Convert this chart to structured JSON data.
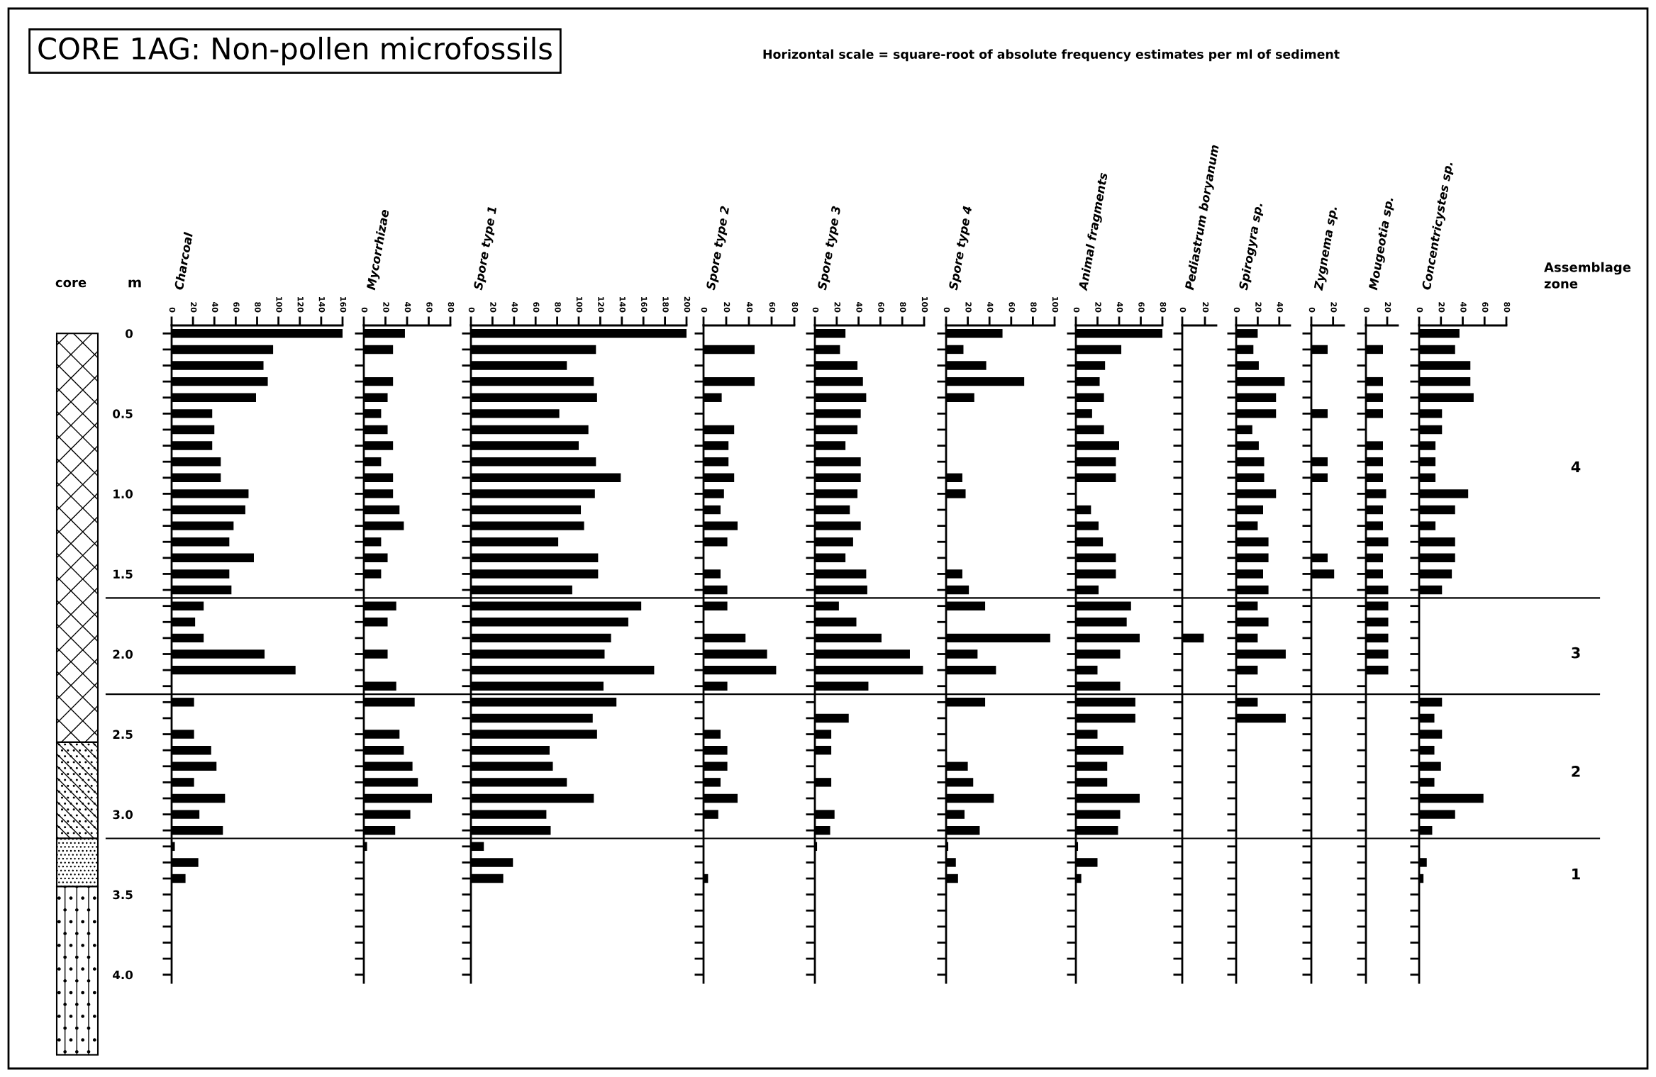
{
  "chart_data": [
    {
      "type": "bar",
      "orientation": "horizontal",
      "title": "Charcoal",
      "ylabel": "m",
      "color": "#000000",
      "annotations": [
        "CORE 1AG: Non-pollen microfossils",
        "Horizontal scale = square-root of absolute frequency estimates per ml of sediment",
        "core",
        "Assemblage zone",
        "4",
        "3",
        "2",
        "1"
      ],
      "ref_lines": [
        {
          "axis": "y",
          "value": 1.65
        },
        {
          "axis": "y",
          "value": 2.25
        },
        {
          "axis": "y",
          "value": 3.15
        }
      ],
      "x": [
        0,
        0.1,
        0.2,
        0.3,
        0.4,
        0.5,
        0.6,
        0.7,
        0.8,
        0.9,
        1.0,
        1.1,
        1.2,
        1.3,
        1.4,
        1.5,
        1.6,
        1.7,
        1.8,
        1.9,
        2.0,
        2.1,
        2.2,
        2.3,
        2.4,
        2.5,
        2.6,
        2.7,
        2.8,
        2.9,
        3.0,
        3.1,
        3.2,
        3.3,
        3.4
      ],
      "values": [
        160,
        95,
        86,
        90,
        79,
        38,
        40,
        38,
        46,
        46,
        72,
        69,
        58,
        54,
        77,
        54,
        56,
        30,
        22,
        30,
        87,
        116,
        null,
        21,
        null,
        21,
        37,
        42,
        21,
        50,
        26,
        48,
        3,
        25,
        13
      ],
      "xlim": [
        0,
        160
      ],
      "xticks": [
        0,
        20,
        40,
        60,
        80,
        100,
        120,
        140,
        160
      ],
      "ylim": [
        4.05,
        -0.05
      ],
      "yticks": [
        0,
        {
          "value": 0.1,
          "label": null
        },
        {
          "value": 0.2,
          "label": null
        },
        {
          "value": 0.3,
          "label": null
        },
        {
          "value": 0.4,
          "label": null
        },
        0.5,
        {
          "value": 0.6,
          "label": null
        },
        {
          "value": 0.7,
          "label": null
        },
        {
          "value": 0.8,
          "label": null
        },
        {
          "value": 0.9,
          "label": null
        },
        {
          "value": 1,
          "label": "1.0"
        },
        {
          "value": 1.1,
          "label": null
        },
        {
          "value": 1.2,
          "label": null
        },
        {
          "value": 1.3,
          "label": null
        },
        {
          "value": 1.4,
          "label": null
        },
        1.5,
        {
          "value": 1.6,
          "label": null
        },
        {
          "value": 1.7,
          "label": null
        },
        {
          "value": 1.8,
          "label": null
        },
        {
          "value": 1.9,
          "label": null
        },
        {
          "value": 2,
          "label": "2.0"
        },
        {
          "value": 2.1,
          "label": null
        },
        {
          "value": 2.2,
          "label": null
        },
        {
          "value": 2.3,
          "label": null
        },
        {
          "value": 2.4,
          "label": null
        },
        2.5,
        {
          "value": 2.6,
          "label": null
        },
        {
          "value": 2.7,
          "label": null
        },
        {
          "value": 2.8,
          "label": null
        },
        {
          "value": 2.9,
          "label": null
        },
        {
          "value": 3,
          "label": "3.0"
        },
        {
          "value": 3.1,
          "label": null
        },
        {
          "value": 3.2,
          "label": null
        },
        {
          "value": 3.3,
          "label": null
        },
        {
          "value": 3.4,
          "label": null
        },
        3.5,
        {
          "value": 3.6,
          "label": null
        },
        {
          "value": 3.7,
          "label": null
        },
        {
          "value": 3.8,
          "label": null
        },
        {
          "value": 3.9,
          "label": null
        },
        {
          "value": 4,
          "label": "4.0"
        }
      ]
    },
    {
      "type": "bar",
      "orientation": "horizontal",
      "title": "Mycorrhizae",
      "color": "#000000",
      "tick_labels": "x",
      "x": [
        0,
        0.1,
        0.2,
        0.3,
        0.4,
        0.5,
        0.6,
        0.7,
        0.8,
        0.9,
        1.0,
        1.1,
        1.2,
        1.3,
        1.4,
        1.5,
        1.6,
        1.7,
        1.8,
        1.9,
        2.0,
        2.1,
        2.2,
        2.3,
        2.4,
        2.5,
        2.6,
        2.7,
        2.8,
        2.9,
        3.0,
        3.1,
        3.2
      ],
      "values": [
        38,
        27,
        null,
        27,
        22,
        16,
        22,
        27,
        16,
        27,
        27,
        33,
        37,
        16,
        22,
        16,
        null,
        30,
        22,
        null,
        22,
        null,
        30,
        47,
        null,
        33,
        37,
        45,
        50,
        63,
        43,
        29,
        3
      ],
      "xlim": [
        0,
        80
      ],
      "xticks": [
        0,
        20,
        40,
        60,
        80
      ],
      "ylim": [
        4.05,
        -0.05
      ]
    },
    {
      "type": "bar",
      "orientation": "horizontal",
      "title": "Spore type 1",
      "color": "#000000",
      "tick_labels": "x",
      "x": [
        0,
        0.1,
        0.2,
        0.3,
        0.4,
        0.5,
        0.6,
        0.7,
        0.8,
        0.9,
        1.0,
        1.1,
        1.2,
        1.3,
        1.4,
        1.5,
        1.6,
        1.7,
        1.8,
        1.9,
        2.0,
        2.1,
        2.2,
        2.3,
        2.4,
        2.5,
        2.6,
        2.7,
        2.8,
        2.9,
        3.0,
        3.1,
        3.2,
        3.3,
        3.4
      ],
      "values": [
        200,
        116,
        89,
        114,
        117,
        82,
        109,
        100,
        116,
        139,
        115,
        102,
        105,
        81,
        118,
        118,
        94,
        158,
        146,
        130,
        124,
        170,
        123,
        135,
        113,
        117,
        73,
        76,
        89,
        114,
        70,
        74,
        12,
        39,
        30
      ],
      "xlim": [
        0,
        200
      ],
      "xticks": [
        0,
        20,
        40,
        60,
        80,
        100,
        120,
        140,
        160,
        180,
        200
      ],
      "ylim": [
        4.05,
        -0.05
      ]
    },
    {
      "type": "bar",
      "orientation": "horizontal",
      "title": "Spore type 2",
      "color": "#000000",
      "tick_labels": "x",
      "x": [
        0.1,
        0.2,
        0.3,
        0.4,
        0.5,
        0.6,
        0.7,
        0.8,
        0.9,
        1.0,
        1.1,
        1.2,
        1.3,
        1.4,
        1.5,
        1.6,
        1.7,
        1.8,
        1.9,
        2.0,
        2.1,
        2.2,
        2.3,
        2.4,
        2.5,
        2.6,
        2.7,
        2.8,
        2.9,
        3.0,
        3.1,
        3.2,
        3.3,
        3.4
      ],
      "values": [
        45,
        null,
        45,
        16,
        null,
        27,
        22,
        22,
        27,
        18,
        15,
        30,
        21,
        null,
        15,
        21,
        21,
        null,
        37,
        56,
        64,
        21,
        null,
        null,
        15,
        21,
        21,
        15,
        30,
        13,
        null,
        null,
        null,
        4
      ],
      "xlim": [
        0,
        80
      ],
      "xticks": [
        0,
        20,
        40,
        60,
        80
      ],
      "ylim": [
        4.05,
        -0.05
      ]
    },
    {
      "type": "bar",
      "orientation": "horizontal",
      "title": "Spore type 3",
      "color": "#000000",
      "tick_labels": "x",
      "x": [
        0,
        0.1,
        0.2,
        0.3,
        0.4,
        0.5,
        0.6,
        0.7,
        0.8,
        0.9,
        1.0,
        1.1,
        1.2,
        1.3,
        1.4,
        1.5,
        1.6,
        1.7,
        1.8,
        1.9,
        2.0,
        2.1,
        2.2,
        2.3,
        2.4,
        2.5,
        2.6,
        2.7,
        2.8,
        2.9,
        3.0,
        3.1,
        3.2
      ],
      "values": [
        28,
        23,
        39,
        44,
        47,
        42,
        39,
        28,
        42,
        42,
        39,
        32,
        42,
        35,
        28,
        47,
        48,
        22,
        38,
        61,
        87,
        99,
        49,
        null,
        31,
        15,
        15,
        null,
        15,
        null,
        18,
        14,
        2
      ],
      "xlim": [
        0,
        100
      ],
      "xticks": [
        0,
        20,
        40,
        60,
        80,
        100
      ],
      "ylim": [
        4.05,
        -0.05
      ]
    },
    {
      "type": "bar",
      "orientation": "horizontal",
      "title": "Spore type 4",
      "color": "#000000",
      "tick_labels": "x",
      "x": [
        0,
        0.1,
        0.2,
        0.3,
        0.4,
        0.5,
        0.6,
        0.7,
        0.8,
        0.9,
        1.0,
        1.1,
        1.2,
        1.3,
        1.4,
        1.5,
        1.6,
        1.7,
        1.8,
        1.9,
        2.0,
        2.1,
        2.2,
        2.3,
        2.4,
        2.5,
        2.6,
        2.7,
        2.8,
        2.9,
        3.0,
        3.1,
        3.2,
        3.3,
        3.4
      ],
      "values": [
        52,
        16,
        37,
        72,
        26,
        null,
        null,
        null,
        null,
        15,
        18,
        null,
        null,
        null,
        null,
        15,
        21,
        36,
        null,
        96,
        29,
        46,
        null,
        36,
        null,
        null,
        null,
        20,
        25,
        44,
        17,
        31,
        2,
        9,
        11
      ],
      "xlim": [
        0,
        100
      ],
      "xticks": [
        0,
        20,
        40,
        60,
        80,
        100
      ],
      "ylim": [
        4.05,
        -0.05
      ]
    },
    {
      "type": "bar",
      "orientation": "horizontal",
      "title": "Animal fragments",
      "color": "#000000",
      "tick_labels": "x",
      "x": [
        0,
        0.1,
        0.2,
        0.3,
        0.4,
        0.5,
        0.6,
        0.7,
        0.8,
        0.9,
        1.0,
        1.1,
        1.2,
        1.3,
        1.4,
        1.5,
        1.6,
        1.7,
        1.8,
        1.9,
        2.0,
        2.1,
        2.2,
        2.3,
        2.4,
        2.5,
        2.6,
        2.7,
        2.8,
        2.9,
        3.0,
        3.1,
        3.2,
        3.3,
        3.4
      ],
      "values": [
        80,
        42,
        27,
        22,
        26,
        15,
        26,
        40,
        37,
        37,
        null,
        14,
        21,
        25,
        37,
        37,
        21,
        51,
        47,
        59,
        41,
        20,
        41,
        55,
        55,
        20,
        44,
        29,
        29,
        59,
        41,
        39,
        2,
        20,
        5
      ],
      "xlim": [
        0,
        80
      ],
      "xticks": [
        0,
        20,
        40,
        60,
        80
      ],
      "ylim": [
        4.05,
        -0.05
      ]
    },
    {
      "type": "bar",
      "orientation": "horizontal",
      "title": "Pediastrum boryanum",
      "color": "#000000",
      "tick_labels": "x",
      "x": [
        1.9
      ],
      "values": [
        19
      ],
      "xlim": [
        0,
        30
      ],
      "xticks": [
        0,
        20
      ],
      "ylim": [
        4.05,
        -0.05
      ]
    },
    {
      "type": "bar",
      "orientation": "horizontal",
      "title": "Spirogyra sp.",
      "color": "#000000",
      "tick_labels": "x",
      "x": [
        0,
        0.1,
        0.2,
        0.3,
        0.4,
        0.5,
        0.6,
        0.7,
        0.8,
        0.9,
        1.0,
        1.1,
        1.2,
        1.3,
        1.4,
        1.5,
        1.6,
        1.7,
        1.8,
        1.9,
        2.0,
        2.1,
        2.2,
        2.3,
        2.4
      ],
      "values": [
        20,
        16,
        21,
        45,
        37,
        37,
        15,
        21,
        26,
        26,
        37,
        25,
        20,
        30,
        30,
        25,
        30,
        20,
        30,
        20,
        46,
        20,
        null,
        20,
        46
      ],
      "xlim": [
        0,
        50
      ],
      "xticks": [
        0,
        20,
        40
      ],
      "ylim": [
        4.05,
        -0.05
      ]
    },
    {
      "type": "bar",
      "orientation": "horizontal",
      "title": "Zygnema sp.",
      "color": "#000000",
      "tick_labels": "x",
      "x": [
        0.1,
        0.2,
        0.3,
        0.4,
        0.5,
        0.6,
        0.7,
        0.8,
        0.9,
        1.0,
        1.1,
        1.2,
        1.3,
        1.4,
        1.5
      ],
      "values": [
        15,
        null,
        null,
        null,
        15,
        null,
        null,
        15,
        15,
        null,
        null,
        null,
        null,
        15,
        21
      ],
      "xlim": [
        0,
        30
      ],
      "xticks": [
        0,
        20
      ],
      "ylim": [
        4.05,
        -0.05
      ]
    },
    {
      "type": "bar",
      "orientation": "horizontal",
      "title": "Mougeotia sp.",
      "color": "#000000",
      "tick_labels": "x",
      "x": [
        0.1,
        0.2,
        0.3,
        0.4,
        0.5,
        0.6,
        0.7,
        0.8,
        0.9,
        1.0,
        1.1,
        1.2,
        1.3,
        1.4,
        1.5,
        1.6,
        1.7,
        1.8,
        1.9,
        2.0,
        2.1
      ],
      "values": [
        16,
        null,
        16,
        16,
        16,
        null,
        16,
        16,
        16,
        19,
        16,
        16,
        21,
        16,
        16,
        21,
        21,
        21,
        21,
        21,
        21
      ],
      "xlim": [
        0,
        30
      ],
      "xticks": [
        0,
        20
      ],
      "ylim": [
        4.05,
        -0.05
      ]
    },
    {
      "type": "bar",
      "orientation": "horizontal",
      "title": "Concentricystes sp.",
      "color": "#000000",
      "tick_labels": "x",
      "x": [
        0,
        0.1,
        0.2,
        0.3,
        0.4,
        0.5,
        0.6,
        0.7,
        0.8,
        0.9,
        1.0,
        1.1,
        1.2,
        1.3,
        1.4,
        1.5,
        1.6,
        1.7,
        1.8,
        1.9,
        2.0,
        2.1,
        2.2,
        2.3,
        2.4,
        2.5,
        2.6,
        2.7,
        2.8,
        2.9,
        3.0,
        3.1,
        3.2,
        3.3,
        3.4
      ],
      "values": [
        37,
        33,
        47,
        47,
        50,
        21,
        21,
        15,
        15,
        15,
        45,
        33,
        15,
        33,
        33,
        30,
        21,
        null,
        null,
        null,
        null,
        null,
        null,
        21,
        14,
        21,
        14,
        20,
        14,
        59,
        33,
        12,
        null,
        7,
        4
      ],
      "xlim": [
        0,
        80
      ],
      "xticks": [
        0,
        20,
        40,
        60,
        80
      ],
      "ylim": [
        4.05,
        -0.05
      ]
    }
  ]
}
